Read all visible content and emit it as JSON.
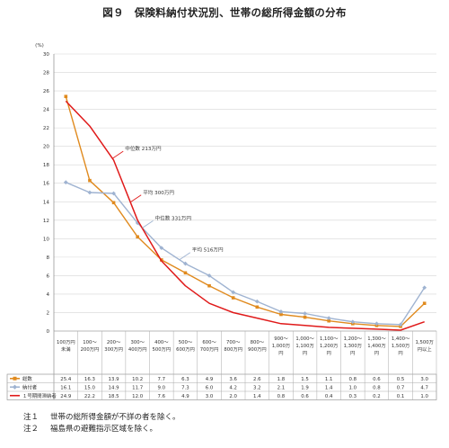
{
  "title": "図９　保険料納付状況別、世帯の総所得金額の分布",
  "chart_data": {
    "type": "line",
    "ylabel": "(%)",
    "ylim": [
      0,
      30
    ],
    "yticks": [
      0,
      2,
      4,
      6,
      8,
      10,
      12,
      14,
      16,
      18,
      20,
      22,
      24,
      26,
      28,
      30
    ],
    "categories": [
      [
        "100万円",
        "未満"
      ],
      [
        "100～",
        "200万円"
      ],
      [
        "200～",
        "300万円"
      ],
      [
        "300～",
        "400万円"
      ],
      [
        "400～",
        "500万円"
      ],
      [
        "500～",
        "600万円"
      ],
      [
        "600～",
        "700万円"
      ],
      [
        "700～",
        "800万円"
      ],
      [
        "800～",
        "900万円"
      ],
      [
        "900～",
        "1,000万",
        "円"
      ],
      [
        "1,000～",
        "1,100万",
        "円"
      ],
      [
        "1,100～",
        "1,200万",
        "円"
      ],
      [
        "1,200～",
        "1,300万",
        "円"
      ],
      [
        "1,300～",
        "1,400万",
        "円"
      ],
      [
        "1,400～",
        "1,500万",
        "円"
      ],
      [
        "1,500万",
        "円以上"
      ]
    ],
    "series": [
      {
        "name": "総数",
        "color": "#e08a1e",
        "marker": "square",
        "values": [
          25.4,
          16.3,
          13.9,
          10.2,
          7.7,
          6.3,
          4.9,
          3.6,
          2.6,
          1.8,
          1.5,
          1.1,
          0.8,
          0.6,
          0.5,
          3.0
        ],
        "labels": [
          "25.4",
          "16.3",
          "13.9",
          "10.2",
          "7.7",
          "6.3",
          "4.9",
          "3.6",
          "2.6",
          "1.8",
          "1.5",
          "1.1",
          "0.8",
          "0.6",
          "0.5",
          "3.0"
        ]
      },
      {
        "name": "納付者",
        "color": "#9fb3d1",
        "marker": "diamond",
        "values": [
          16.1,
          15.0,
          14.9,
          11.7,
          9.0,
          7.3,
          6.0,
          4.2,
          3.2,
          2.1,
          1.9,
          1.4,
          1.0,
          0.8,
          0.7,
          4.7
        ],
        "labels": [
          "16.1",
          "15.0",
          "14.9",
          "11.7",
          "9.0",
          "7.3",
          "6.0",
          "4.2",
          "3.2",
          "2.1",
          "1.9",
          "1.4",
          "1.0",
          "0.8",
          "0.7",
          "4.7"
        ]
      },
      {
        "name": "１号期間滞納者",
        "color": "#e01a1a",
        "marker": "none",
        "values": [
          24.9,
          22.2,
          18.5,
          12.0,
          7.6,
          4.9,
          3.0,
          2.0,
          1.4,
          0.8,
          0.6,
          0.4,
          0.3,
          0.2,
          0.1,
          1.0
        ],
        "labels": [
          "24.9",
          "22.2",
          "18.5",
          "12.0",
          "7.6",
          "4.9",
          "3.0",
          "2.0",
          "1.4",
          "0.8",
          "0.6",
          "0.4",
          "0.3",
          "0.2",
          "0.1",
          "1.0"
        ]
      }
    ],
    "annotations": [
      {
        "text": "中位数 213万円",
        "series": 2,
        "at": 1.95
      },
      {
        "text": "平均 300万円",
        "series": 2,
        "at": 2.7
      },
      {
        "text": "中位数 331万円",
        "series": 1,
        "at": 3.2
      },
      {
        "text": "平均 516万円",
        "series": 1,
        "at": 4.75
      }
    ],
    "grid": true,
    "legend": "table-left"
  },
  "notes": [
    {
      "label": "注１",
      "text": "世帯の総所得金額が不詳の者を除く。"
    },
    {
      "label": "注２",
      "text": "福島県の避難指示区域を除く。"
    }
  ]
}
